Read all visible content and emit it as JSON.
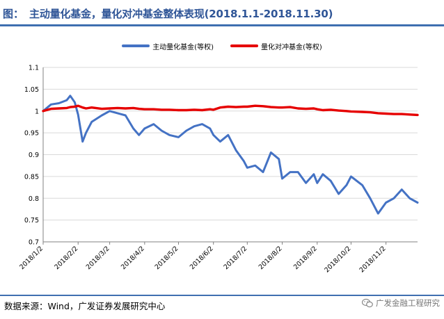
{
  "header": {
    "prefix": "图：",
    "title": "主动量化基金，量化对冲基金整体表现(2018.1.1-2018.11.30)"
  },
  "footer": {
    "source": "数据来源：Wind，广发证券发展研究中心",
    "brand": "广发金融工程研究"
  },
  "icons": {
    "brand": "wechat-icon"
  },
  "colors": {
    "title": "#2f5597",
    "active": "#4472c4",
    "hedge": "#e60000",
    "rule": "#3f6fb0"
  },
  "chart_data": {
    "type": "line",
    "title": "",
    "xlabel": "",
    "ylabel": "",
    "ylim": [
      0.7,
      1.1
    ],
    "yticks": [
      "1.1",
      "1.05",
      "1",
      "0.95",
      "0.9",
      "0.85",
      "0.8",
      "0.75",
      "0.7"
    ],
    "grid": "horizontal",
    "legend_position": "top",
    "x_tick_labels": [
      "2018/1/2",
      "2018/2/2",
      "2018/3/2",
      "2018/4/2",
      "2018/5/2",
      "2018/6/2",
      "2018/7/2",
      "2018/8/2",
      "2018/9/2",
      "2018/10/2",
      "2018/11/2"
    ],
    "x": [
      "2018/1/2",
      "2018/1/9",
      "2018/1/16",
      "2018/1/23",
      "2018/1/26",
      "2018/1/30",
      "2018/2/2",
      "2018/2/6",
      "2018/2/9",
      "2018/2/14",
      "2018/2/23",
      "2018/3/2",
      "2018/3/9",
      "2018/3/16",
      "2018/3/23",
      "2018/3/28",
      "2018/4/2",
      "2018/4/10",
      "2018/4/17",
      "2018/4/24",
      "2018/5/2",
      "2018/5/9",
      "2018/5/16",
      "2018/5/23",
      "2018/5/30",
      "2018/6/2",
      "2018/6/8",
      "2018/6/15",
      "2018/6/22",
      "2018/6/29",
      "2018/7/2",
      "2018/7/9",
      "2018/7/16",
      "2018/7/23",
      "2018/7/30",
      "2018/8/2",
      "2018/8/9",
      "2018/8/16",
      "2018/8/23",
      "2018/8/30",
      "2018/9/2",
      "2018/9/7",
      "2018/9/14",
      "2018/9/21",
      "2018/9/28",
      "2018/10/2",
      "2018/10/12",
      "2018/10/19",
      "2018/10/26",
      "2018/11/2",
      "2018/11/9",
      "2018/11/16",
      "2018/11/23",
      "2018/11/30"
    ],
    "series": [
      {
        "name": "主动量化基金(等权)",
        "color": "#4472c4",
        "values": [
          1.0,
          1.015,
          1.018,
          1.025,
          1.035,
          1.02,
          0.992,
          0.93,
          0.95,
          0.975,
          0.99,
          1.0,
          0.995,
          0.99,
          0.96,
          0.945,
          0.96,
          0.97,
          0.955,
          0.945,
          0.94,
          0.955,
          0.965,
          0.97,
          0.96,
          0.945,
          0.93,
          0.945,
          0.91,
          0.885,
          0.87,
          0.875,
          0.86,
          0.905,
          0.89,
          0.845,
          0.86,
          0.86,
          0.835,
          0.855,
          0.835,
          0.855,
          0.84,
          0.81,
          0.83,
          0.85,
          0.83,
          0.8,
          0.765,
          0.79,
          0.8,
          0.82,
          0.8,
          0.79
        ]
      },
      {
        "name": "量化对冲基金(等权)",
        "color": "#e60000",
        "values": [
          1.0,
          1.005,
          1.006,
          1.007,
          1.009,
          1.01,
          1.012,
          1.008,
          1.006,
          1.008,
          1.005,
          1.006,
          1.007,
          1.006,
          1.007,
          1.005,
          1.004,
          1.004,
          1.003,
          1.003,
          1.002,
          1.002,
          1.003,
          1.002,
          1.004,
          1.003,
          1.008,
          1.01,
          1.009,
          1.01,
          1.01,
          1.012,
          1.011,
          1.009,
          1.008,
          1.008,
          1.009,
          1.006,
          1.005,
          1.006,
          1.004,
          1.002,
          1.003,
          1.001,
          1.0,
          0.999,
          0.998,
          0.997,
          0.995,
          0.994,
          0.993,
          0.993,
          0.992,
          0.991
        ]
      }
    ]
  }
}
